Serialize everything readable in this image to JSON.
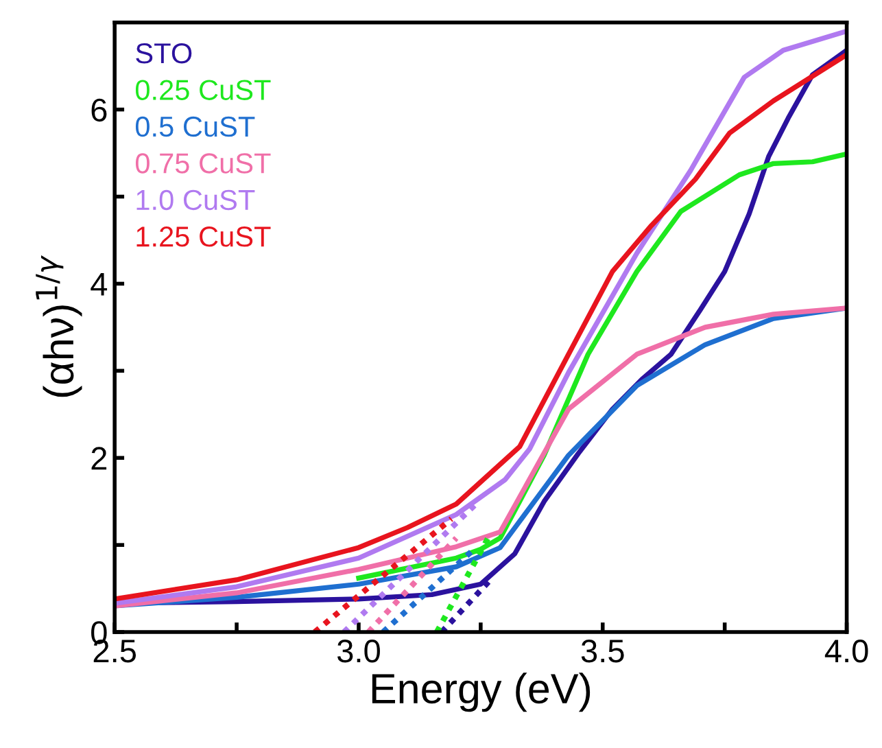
{
  "chart_data": {
    "type": "line",
    "xlabel": "Energy (eV)",
    "ylabel": "(αhν)$^{1/γ}$",
    "xlim": [
      2.5,
      4.0
    ],
    "ylim": [
      0,
      7
    ],
    "xticks": [
      {
        "value": 2.5,
        "label": "2.5"
      },
      {
        "value": 2.75,
        "label": null
      },
      {
        "value": 3.0,
        "label": "3.0"
      },
      {
        "value": 3.25,
        "label": null
      },
      {
        "value": 3.5,
        "label": "3.5"
      },
      {
        "value": 3.75,
        "label": null
      },
      {
        "value": 4.0,
        "label": "4.0"
      }
    ],
    "yticks": [
      0,
      {
        "value": 1,
        "label": null
      },
      2,
      {
        "value": 3,
        "label": null
      },
      4,
      {
        "value": 5,
        "label": null
      },
      6
    ],
    "grid": false,
    "legend": "top left",
    "line_style": "solid",
    "marker": "none",
    "series": [
      {
        "name": "STO",
        "color": "#2b129e",
        "x": [
          2.5,
          2.75,
          3.0,
          3.15,
          3.25,
          3.32,
          3.38,
          3.45,
          3.52,
          3.58,
          3.64,
          3.7,
          3.75,
          3.8,
          3.84,
          3.88,
          3.93,
          4.0
        ],
        "values": [
          0.33,
          0.35,
          0.38,
          0.43,
          0.55,
          0.9,
          1.5,
          2.05,
          2.56,
          2.9,
          3.19,
          3.7,
          4.14,
          4.8,
          5.46,
          5.9,
          6.4,
          6.68
        ]
      },
      {
        "name": "0.25 CuST",
        "color": "#1ee81e",
        "x": [
          3.0,
          3.2,
          3.25,
          3.29,
          3.38,
          3.47,
          3.57,
          3.66,
          3.78,
          3.85,
          3.93,
          4.0
        ],
        "values": [
          0.62,
          0.85,
          0.95,
          1.08,
          2.03,
          3.19,
          4.14,
          4.83,
          5.25,
          5.38,
          5.4,
          5.49
        ]
      },
      {
        "name": "0.5 CuST",
        "color": "#1f6fd0",
        "x": [
          2.5,
          2.75,
          3.0,
          3.2,
          3.29,
          3.43,
          3.57,
          3.71,
          3.85,
          4.0
        ],
        "values": [
          0.3,
          0.4,
          0.55,
          0.75,
          0.97,
          2.03,
          2.83,
          3.3,
          3.6,
          3.72
        ]
      },
      {
        "name": "0.75 CuST",
        "color": "#f06fa8",
        "x": [
          2.5,
          2.75,
          3.0,
          3.2,
          3.29,
          3.43,
          3.57,
          3.71,
          3.85,
          4.0
        ],
        "values": [
          0.3,
          0.45,
          0.72,
          0.98,
          1.15,
          2.56,
          3.19,
          3.5,
          3.65,
          3.72
        ]
      },
      {
        "name": "1.0 CuST",
        "color": "#b07af0",
        "x": [
          2.5,
          2.75,
          3.0,
          3.2,
          3.3,
          3.35,
          3.43,
          3.57,
          3.68,
          3.79,
          3.87,
          4.0
        ],
        "values": [
          0.33,
          0.52,
          0.85,
          1.35,
          1.75,
          2.1,
          2.98,
          4.35,
          5.3,
          6.37,
          6.68,
          6.9
        ]
      },
      {
        "name": "1.25 CuST",
        "color": "#e8141e",
        "x": [
          2.5,
          2.75,
          3.0,
          3.1,
          3.2,
          3.33,
          3.43,
          3.52,
          3.6,
          3.69,
          3.76,
          3.85,
          4.0
        ],
        "values": [
          0.38,
          0.6,
          0.97,
          1.2,
          1.47,
          2.13,
          3.19,
          4.14,
          4.67,
          5.2,
          5.73,
          6.1,
          6.63
        ]
      },
      {
        "color": "#2b129e",
        "line_style": "dotted",
        "x": [
          3.17,
          3.27
        ],
        "values": [
          0,
          0.6
        ]
      },
      {
        "color": "#1ee81e",
        "line_style": "dotted",
        "x": [
          3.16,
          3.27
        ],
        "values": [
          0,
          1.13
        ]
      },
      {
        "color": "#1f6fd0",
        "line_style": "dotted",
        "x": [
          3.05,
          3.24
        ],
        "values": [
          0,
          0.97
        ]
      },
      {
        "color": "#f06fa8",
        "line_style": "dotted",
        "x": [
          3.02,
          3.2
        ],
        "values": [
          0,
          1.08
        ]
      },
      {
        "color": "#b07af0",
        "line_style": "dotted",
        "x": [
          2.97,
          3.24
        ],
        "values": [
          0,
          1.47
        ]
      },
      {
        "color": "#e8141e",
        "line_style": "dotted",
        "x": [
          2.91,
          3.19
        ],
        "values": [
          0,
          1.3
        ]
      }
    ]
  }
}
